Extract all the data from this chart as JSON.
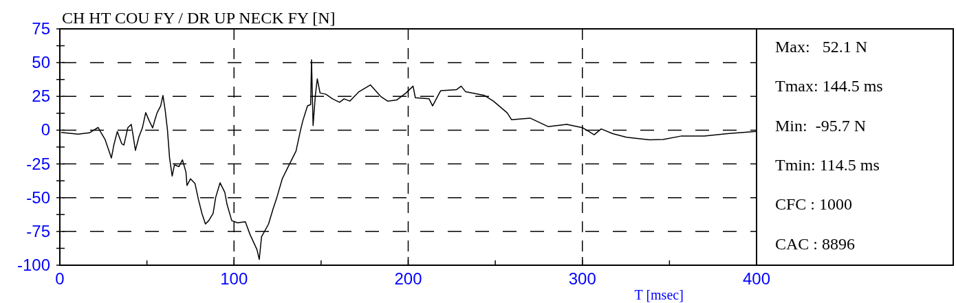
{
  "chart_data": {
    "type": "line",
    "title": "CH HT COU FY / DR UP NECK FY [N]",
    "xlabel": "T [msec]",
    "x": [
      0.7,
      10.5,
      17,
      22,
      24,
      26,
      29.6,
      31,
      33,
      35.5,
      36.8,
      39,
      41,
      42,
      43.4,
      45.4,
      47.4,
      49.3,
      51.3,
      53.3,
      54.6,
      55.9,
      57.9,
      59.2,
      60.5,
      61.8,
      63,
      64.5,
      65.8,
      68.4,
      70.4,
      72.4,
      73,
      75,
      77.6,
      79.6,
      81.6,
      83.6,
      85.5,
      88,
      89.5,
      92,
      94.7,
      96,
      98.7,
      102,
      106.5,
      109.2,
      113.2,
      114.5,
      115.8,
      119.8,
      122.4,
      124.4,
      127.7,
      131.6,
      135.6,
      138.2,
      139.5,
      142.2,
      144,
      144.5,
      145.4,
      146.7,
      147.8,
      149.4,
      152.7,
      156.6,
      160.6,
      163.2,
      166.5,
      171.7,
      178.3,
      184.2,
      188.2,
      193.4,
      198.7,
      202.8,
      204.1,
      212,
      214,
      218.6,
      227.8,
      230.4,
      233,
      243.6,
      248.9,
      256.8,
      259.4,
      270,
      280.5,
      291,
      300.3,
      306.8,
      310.8,
      317.4,
      325.3,
      338.5,
      346.4,
      357,
      370,
      383.3,
      400
    ],
    "series": [
      {
        "color": "#000000",
        "values": [
          -1.7,
          -3,
          -2,
          2,
          -2.6,
          -7,
          -20.6,
          -11,
          -1,
          -10,
          -11,
          1.7,
          4.3,
          -3.4,
          -15,
          -5,
          1.7,
          13,
          6.9,
          1.7,
          7.7,
          13,
          18,
          25.7,
          14.6,
          0,
          -20.6,
          -34,
          -25.7,
          -27,
          -22,
          -31,
          -41,
          -36,
          -39.5,
          -51.5,
          -61.7,
          -69.5,
          -67,
          -61.7,
          -49.7,
          -39,
          -46,
          -55,
          -67,
          -68.6,
          -67.8,
          -77.3,
          -88.5,
          -95.7,
          -79,
          -69.6,
          -58.4,
          -50.7,
          -36,
          -25.8,
          -15.5,
          0,
          6.9,
          18,
          18.9,
          52.1,
          3.4,
          25.8,
          38,
          27.5,
          26.6,
          23.2,
          20.6,
          23.2,
          21.5,
          28.4,
          33.5,
          25,
          21.5,
          22.3,
          27.5,
          32.6,
          24,
          23.2,
          18,
          29.2,
          30,
          32.6,
          28.4,
          25.8,
          21.5,
          12.9,
          7.7,
          8.9,
          2.6,
          4.3,
          1.7,
          -3.4,
          0.9,
          -2.6,
          -5.2,
          -7.2,
          -6.9,
          -4.3,
          -4.3,
          -2.6,
          -0.9
        ]
      }
    ],
    "xlim": [
      0,
      400
    ],
    "ylim": [
      -100,
      75
    ],
    "xticks": [
      0,
      {
        "value": 50,
        "label": null
      },
      100,
      {
        "value": 150,
        "label": null
      },
      200,
      {
        "value": 250,
        "label": null
      },
      300,
      {
        "value": 350,
        "label": null
      },
      400
    ],
    "yticks": [
      -100,
      {
        "value": -87.5,
        "label": null
      },
      -75,
      {
        "value": -62.5,
        "label": null
      },
      -50,
      {
        "value": -37.5,
        "label": null
      },
      -25,
      {
        "value": -12.5,
        "label": null
      },
      0,
      {
        "value": 12.5,
        "label": null
      },
      25,
      {
        "value": 37.5,
        "label": null
      },
      50,
      {
        "value": 62.5,
        "label": null
      },
      75
    ],
    "grid": true,
    "marker": "none",
    "line_style": "solid",
    "annotations": [
      "Max:   52.1 N",
      "Tmax: 144.5 ms",
      "Min:  -95.7 N",
      "Tmin: 114.5 ms",
      "CFC : 1000",
      "CAC : 8896"
    ]
  }
}
